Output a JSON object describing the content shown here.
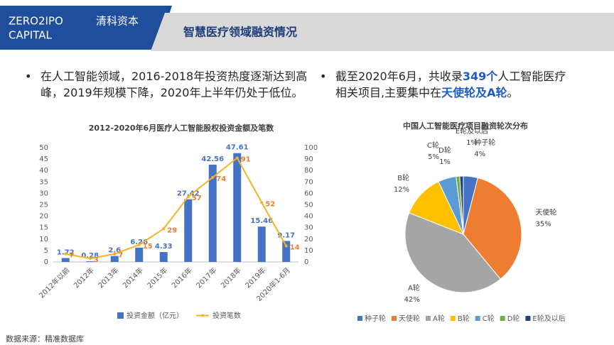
{
  "header": {
    "logo_line1": "ZERO2IPO",
    "logo_line2": "CAPITAL",
    "logo_cn": "清科资本",
    "title": "智慧医疗领域融资情况"
  },
  "bullets": [
    {
      "segments": [
        {
          "text": "在人工智能领域，2016-2018年投资热度逐渐达到高峰，2019年规模下降，2020年上半年仍处于低位。",
          "emphasis": false
        }
      ]
    },
    {
      "segments": [
        {
          "text": "截至2020年6月，共收录",
          "emphasis": false
        },
        {
          "text": "349个",
          "emphasis": true
        },
        {
          "text": "人工智能医疗相关项目,主要集中在",
          "emphasis": false
        },
        {
          "text": "天使轮及A轮",
          "emphasis": true
        },
        {
          "text": "。",
          "emphasis": false
        }
      ]
    }
  ],
  "source": "数据来源：精准数据库",
  "chart_data": [
    {
      "type": "combo",
      "title": "2012-2020年6月医疗人工智能股权投资金额及笔数",
      "categories": [
        "2012年以前",
        "2012年",
        "2013年",
        "2014年",
        "2015年",
        "2016年",
        "2017年",
        "2018年",
        "2019年",
        "2020年1-6月"
      ],
      "series": [
        {
          "name": "投资金额（亿元）",
          "type": "bar",
          "color": "#4472c4",
          "values": [
            1.72,
            0.28,
            2.6,
            6.26,
            4.33,
            27.42,
            42.56,
            47.61,
            15.46,
            9.17
          ]
        },
        {
          "name": "投资笔数",
          "type": "line",
          "axis": "y2",
          "color": "#f5b324",
          "label_color": "#ed7d31",
          "values": [
            7,
            3,
            7,
            15,
            29,
            57,
            74,
            91,
            52,
            14
          ]
        }
      ],
      "ylim": [
        0,
        50
      ],
      "yticks": [
        0,
        5,
        10,
        15,
        20,
        25,
        30,
        35,
        40,
        45,
        50
      ],
      "y2lim": [
        0,
        100
      ],
      "y2ticks": [
        0,
        10,
        20,
        30,
        40,
        50,
        60,
        70,
        80,
        90,
        100
      ],
      "grid": false,
      "legend": "bottom"
    },
    {
      "type": "pie",
      "title": "中国人工智能医疗项目融资轮次分布",
      "categories": [
        "种子轮",
        "天使轮",
        "A轮",
        "B轮",
        "C轮",
        "D轮",
        "E轮及以后"
      ],
      "values": [
        4,
        35,
        42,
        12,
        5,
        1,
        1
      ],
      "value_labels": [
        "4%",
        "35%",
        "42%",
        "12%",
        "5%",
        "1%",
        "1%"
      ],
      "colors": [
        "#4472c4",
        "#ed7d31",
        "#a5a5a5",
        "#ffc000",
        "#5b9bd5",
        "#70ad47",
        "#264478"
      ],
      "legend": "bottom"
    }
  ]
}
